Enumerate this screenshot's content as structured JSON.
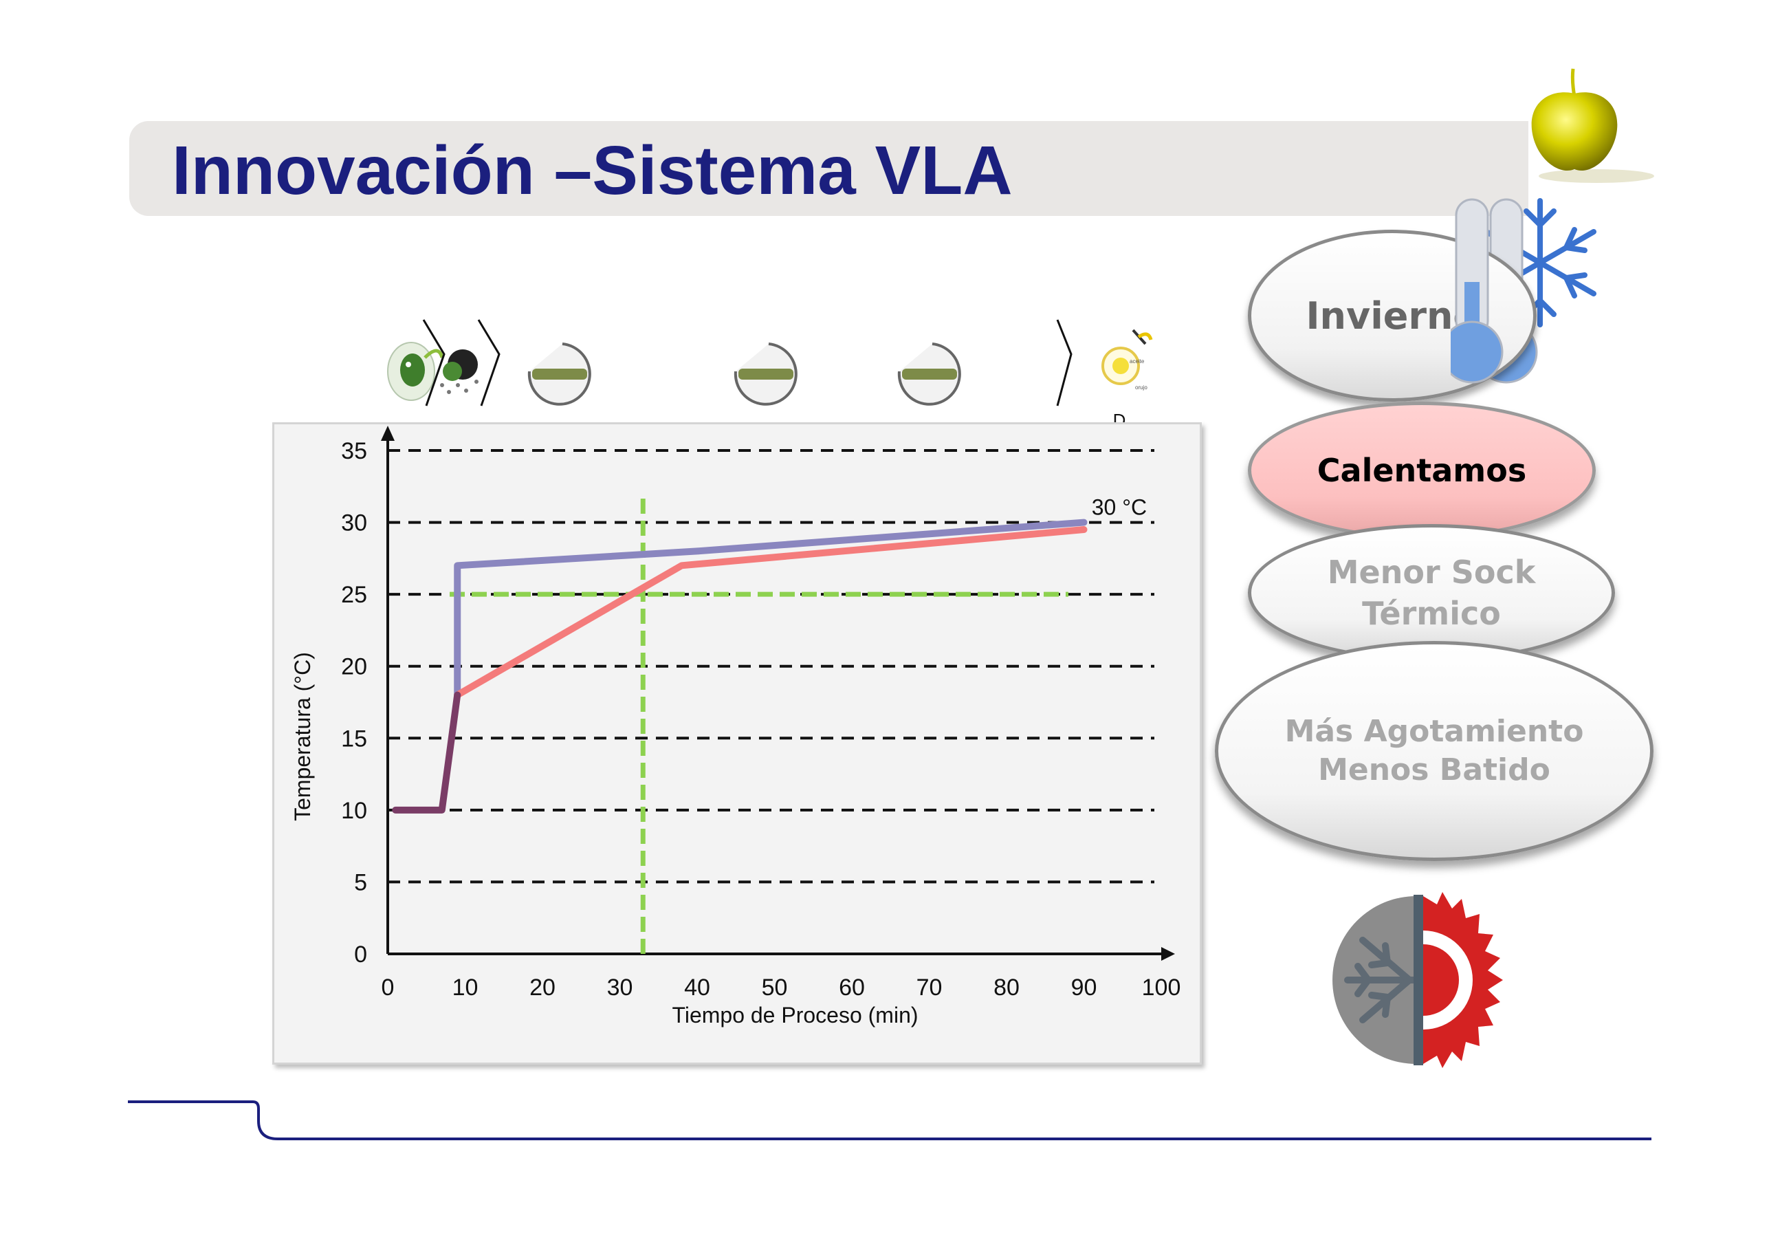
{
  "slide": {
    "title": "Innovación –Sistema VLA",
    "title_color": "#1b1f7e"
  },
  "side_panel": {
    "ovals": [
      {
        "label": "Invierno"
      },
      {
        "label": "Calentamos"
      },
      {
        "label": "Menor Sock\nTérmico"
      },
      {
        "label": "Más Agotamiento\nMenos Batido"
      }
    ]
  },
  "process_strip": {
    "end_label": "D",
    "icons": [
      "olive-washing-icon",
      "malaxer-icon",
      "malaxer-icon",
      "malaxer-icon",
      "decanter-icon"
    ]
  },
  "chart_data": {
    "type": "line",
    "xlabel": "Tiempo de Proceso (min)",
    "ylabel": "Temperatura (°C)",
    "xlim": [
      0,
      100
    ],
    "ylim": [
      0,
      35
    ],
    "xticks": [
      0,
      10,
      20,
      30,
      40,
      50,
      60,
      70,
      80,
      90,
      100
    ],
    "yticks": [
      0,
      5,
      10,
      15,
      20,
      25,
      30,
      35
    ],
    "grid": true,
    "series": [
      {
        "color": "#8a86bf",
        "points": [
          [
            9,
            18
          ],
          [
            9,
            27
          ],
          [
            40,
            28
          ],
          [
            90,
            30
          ]
        ]
      },
      {
        "color": "#f47b7b",
        "points": [
          [
            9,
            18
          ],
          [
            38,
            27
          ],
          [
            90,
            29.5
          ]
        ]
      },
      {
        "color": "#7a3c66",
        "points": [
          [
            1,
            10
          ],
          [
            7,
            10
          ],
          [
            9,
            18
          ]
        ]
      }
    ],
    "reference_lines": [
      {
        "orientation": "vertical",
        "x": 33,
        "y_from": 0,
        "y_to": 32,
        "color": "#8dd14f"
      },
      {
        "orientation": "horizontal",
        "y": 25,
        "x_from": 8,
        "x_to": 88,
        "color": "#8dd14f"
      }
    ],
    "annotations": [
      {
        "text": "30 °C",
        "x": 91,
        "y": 31
      }
    ]
  }
}
